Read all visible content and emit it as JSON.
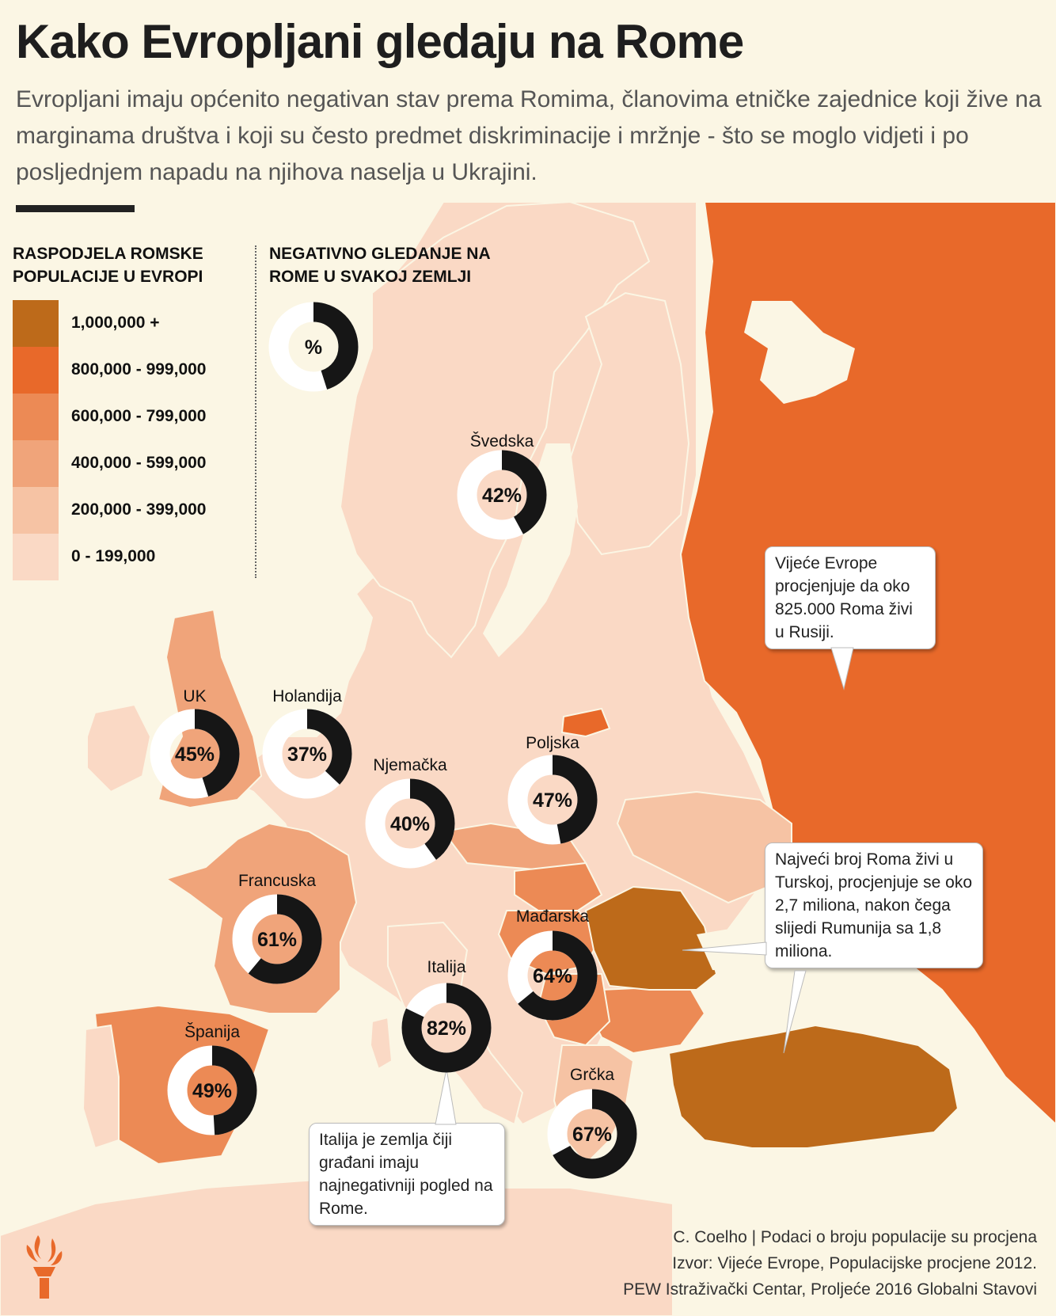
{
  "title": "Kako Evropljani gledaju na Rome",
  "subtitle": "Evropljani imaju općenito negativan stav prema Romima, članovima etničke zajednice koji žive na marginama društva i koji su često predmet diskriminacije i mržnje - što se moglo vidjeti i po posljednjem napadu na njihova naselja u Ukrajini.",
  "legend": {
    "title": "RASPODJELA ROMSKE POPULACIJE U EVROPI",
    "items": [
      {
        "label": "1,000,000 +",
        "color": "#bd6a1a"
      },
      {
        "label": "800,000 - 999,000",
        "color": "#e8692a"
      },
      {
        "label": "600,000 - 799,000",
        "color": "#ec8a55"
      },
      {
        "label": "400,000 - 599,000",
        "color": "#f0a47a"
      },
      {
        "label": "200,000 - 399,000",
        "color": "#f6c3a4"
      },
      {
        "label": "0 - 199,000",
        "color": "#fad9c5"
      }
    ]
  },
  "negative_view": {
    "title": "NEGATIVNO GLEDANJE NA ROME U SVAKOJ ZEMLJI",
    "key_symbol": "%"
  },
  "countries": [
    {
      "name": "Švedska",
      "value": 42
    },
    {
      "name": "UK",
      "value": 45
    },
    {
      "name": "Holandija",
      "value": 37
    },
    {
      "name": "Njemačka",
      "value": 40
    },
    {
      "name": "Poljska",
      "value": 47
    },
    {
      "name": "Francuska",
      "value": 61
    },
    {
      "name": "Mađarska",
      "value": 64
    },
    {
      "name": "Italija",
      "value": 82
    },
    {
      "name": "Španija",
      "value": 49
    },
    {
      "name": "Grčka",
      "value": 67
    }
  ],
  "callouts": {
    "russia": "Vijeće Evrope procjenjuje da oko 825.000 Roma živi u Rusiji.",
    "turkey": "Najveći broj Roma živi u Turskoj, procjenjuje se oko 2,7 miliona, nakon čega slijedi Rumunija sa 1,8 miliona.",
    "italy": "Italija je zemlja čiji građani imaju najnegativniji pogled na Rome."
  },
  "credits": {
    "line1": "C. Coelho | Podaci o broju populacije su procjena",
    "line2": "Izvor: Vijeće Evrope, Populacijske procjene 2012.",
    "line3": "PEW Istraživački Centar, Proljeće 2016 Globalni Stavovi"
  },
  "colors": {
    "background": "#fbf6e4",
    "land_default": "#fad9c5",
    "ring": "#161616",
    "ring_track": "#ffffff"
  }
}
